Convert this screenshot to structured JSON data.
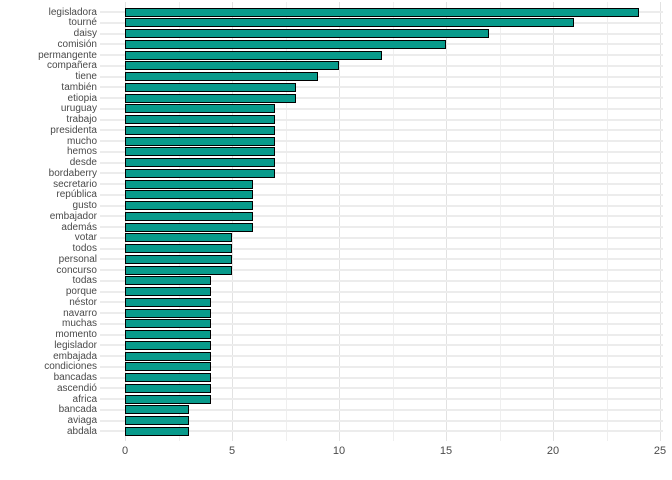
{
  "chart_data": {
    "type": "bar",
    "orientation": "horizontal",
    "title": "",
    "xlabel": "",
    "ylabel": "",
    "legend": "none",
    "grid": "on",
    "xlim": [
      0,
      25.2
    ],
    "x_ticks": [
      0,
      5,
      10,
      15,
      20,
      25
    ],
    "x_minor_ticks": [
      2.5,
      7.5,
      12.5,
      17.5,
      22.5
    ],
    "categories": [
      "legisladora",
      "tourné",
      "daisy",
      "comisión",
      "permangente",
      "compañera",
      "tiene",
      "también",
      "etiopia",
      "uruguay",
      "trabajo",
      "presidenta",
      "mucho",
      "hemos",
      "desde",
      "bordaberry",
      "secretario",
      "república",
      "gusto",
      "embajador",
      "además",
      "votar",
      "todos",
      "personal",
      "concurso",
      "todas",
      "porque",
      "néstor",
      "navarro",
      "muchas",
      "momento",
      "legislador",
      "embajada",
      "condiciones",
      "bancadas",
      "ascendió",
      "africa",
      "bancada",
      "aviaga",
      "abdala"
    ],
    "values": [
      24,
      21,
      17,
      15,
      12,
      10,
      9,
      8,
      8,
      7,
      7,
      7,
      7,
      7,
      7,
      7,
      6,
      6,
      6,
      6,
      6,
      5,
      5,
      5,
      5,
      4,
      4,
      4,
      4,
      4,
      4,
      4,
      4,
      4,
      4,
      4,
      4,
      3,
      3,
      3
    ],
    "colors": {
      "bar_fill": "#089a8b",
      "bar_border": "#000000",
      "grid_major": "#e2e2e2",
      "grid_minor": "#efefef",
      "category_grid": "#ececec",
      "axis_text": "#4a4a4a",
      "background": "#ffffff"
    }
  }
}
